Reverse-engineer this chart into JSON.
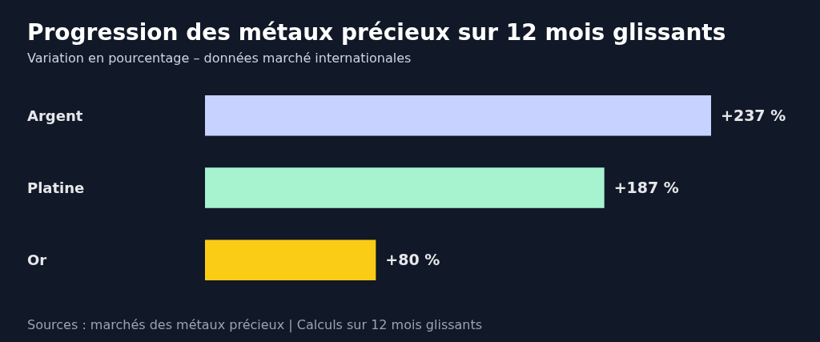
{
  "chart_data": {
    "type": "bar",
    "orientation": "horizontal",
    "title": "Progression des métaux précieux sur 12 mois glissants",
    "subtitle": "Variation en pourcentage – données marché internationales",
    "categories": [
      "Argent",
      "Platine",
      "Or"
    ],
    "values": [
      237,
      187,
      80
    ],
    "colors": [
      "#c7d2fe",
      "#a7f3d0",
      "#facc15"
    ],
    "value_labels": [
      "+237 %",
      "+187 %",
      "+80 %"
    ],
    "annotations": [
      "Sources : marchés des métaux précieux | Calculs sur 12 mois glissants"
    ]
  }
}
